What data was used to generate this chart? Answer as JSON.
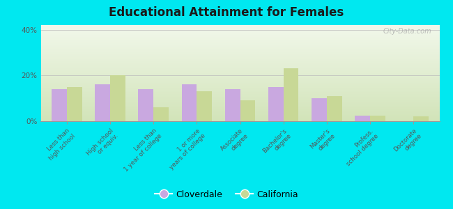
{
  "title": "Educational Attainment for Females",
  "categories": [
    "Less than\nhigh school",
    "High school\nor equiv.",
    "Less than\n1 year of college",
    "1 or more\nyears of college",
    "Associate\ndegree",
    "Bachelor's\ndegree",
    "Master's\ndegree",
    "Profess.\nschool degree",
    "Doctorate\ndegree"
  ],
  "cloverdale": [
    14,
    16,
    14,
    16,
    14,
    15,
    10,
    2.5,
    0
  ],
  "california": [
    15,
    20,
    6,
    13,
    9,
    23,
    11,
    2.5,
    2
  ],
  "cloverdale_color": "#c9a8e0",
  "california_color": "#c8d896",
  "ylim": [
    0,
    42
  ],
  "yticks": [
    0,
    20,
    40
  ],
  "ytick_labels": [
    "0%",
    "20%",
    "40%"
  ],
  "bg_top_color": "#f2f5e4",
  "bg_bottom_color": "#ddebc8",
  "figure_bg": "#00e8f0",
  "legend_cloverdale": "Cloverdale",
  "legend_california": "California",
  "watermark": "City-Data.com"
}
